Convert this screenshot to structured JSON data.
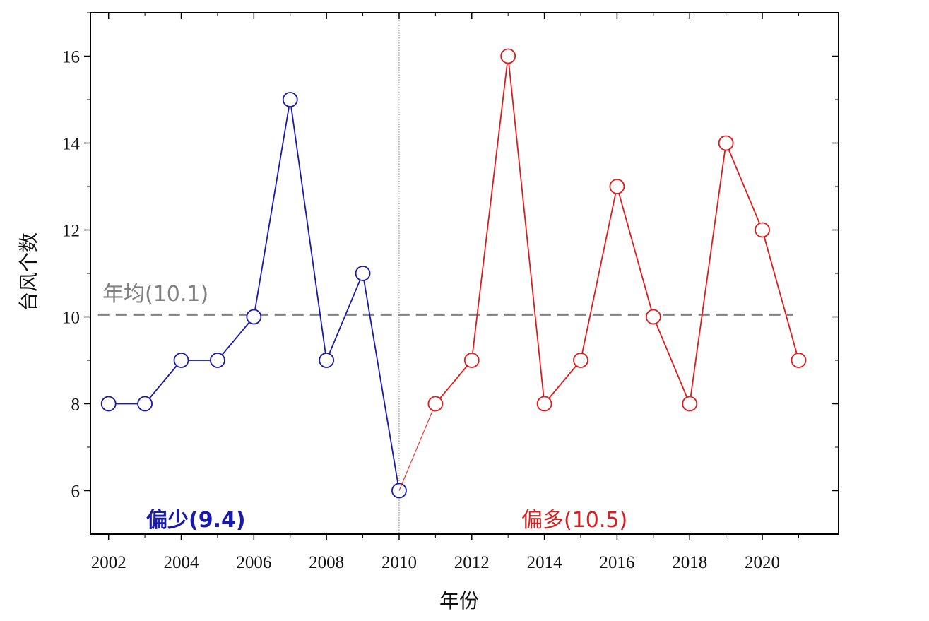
{
  "chart_data": {
    "type": "line",
    "xlabel": "年份",
    "ylabel": "台风个数",
    "xlim": [
      2001.5,
      2022.1
    ],
    "ylim": [
      5,
      17
    ],
    "x_ticks": [
      2002,
      2004,
      2006,
      2008,
      2010,
      2012,
      2014,
      2016,
      2018,
      2020
    ],
    "x_tick_labels": [
      "2002",
      "2004",
      "2006",
      "2008",
      "2010",
      "2012",
      "2014",
      "2016",
      "2018",
      "2020"
    ],
    "y_ticks": [
      6,
      8,
      10,
      12,
      14,
      16
    ],
    "y_tick_labels": [
      "6",
      "8",
      "10",
      "12",
      "14",
      "16"
    ],
    "grid": false,
    "series": [
      {
        "color": "#1a1aaa",
        "x": [
          2002,
          2003,
          2004,
          2005,
          2006,
          2007,
          2008,
          2009,
          2010
        ],
        "y": [
          8,
          8,
          9,
          9,
          10,
          15,
          9,
          11,
          6
        ]
      },
      {
        "color": "#e01b1b",
        "x": [
          2010,
          2011,
          2012,
          2013,
          2014,
          2015,
          2016,
          2017,
          2018,
          2019,
          2020,
          2021
        ],
        "y": [
          6,
          8,
          9,
          16,
          8,
          9,
          13,
          10,
          8,
          14,
          12,
          9
        ],
        "markers_from_index": 1
      }
    ],
    "reference_lines": [
      {
        "type": "horizontal",
        "y": 10.05,
        "color": "#808080",
        "style": "dashed",
        "label": "年均(10.1)"
      },
      {
        "type": "vertical",
        "x": 2010,
        "color": "#808080",
        "style": "dotted"
      }
    ],
    "annotations": [
      {
        "text": "偏少(9.4)",
        "color": "#1a1aaa",
        "bold": true
      },
      {
        "text": "偏多(10.5)",
        "color": "#e01b1b",
        "bold": false
      }
    ]
  }
}
